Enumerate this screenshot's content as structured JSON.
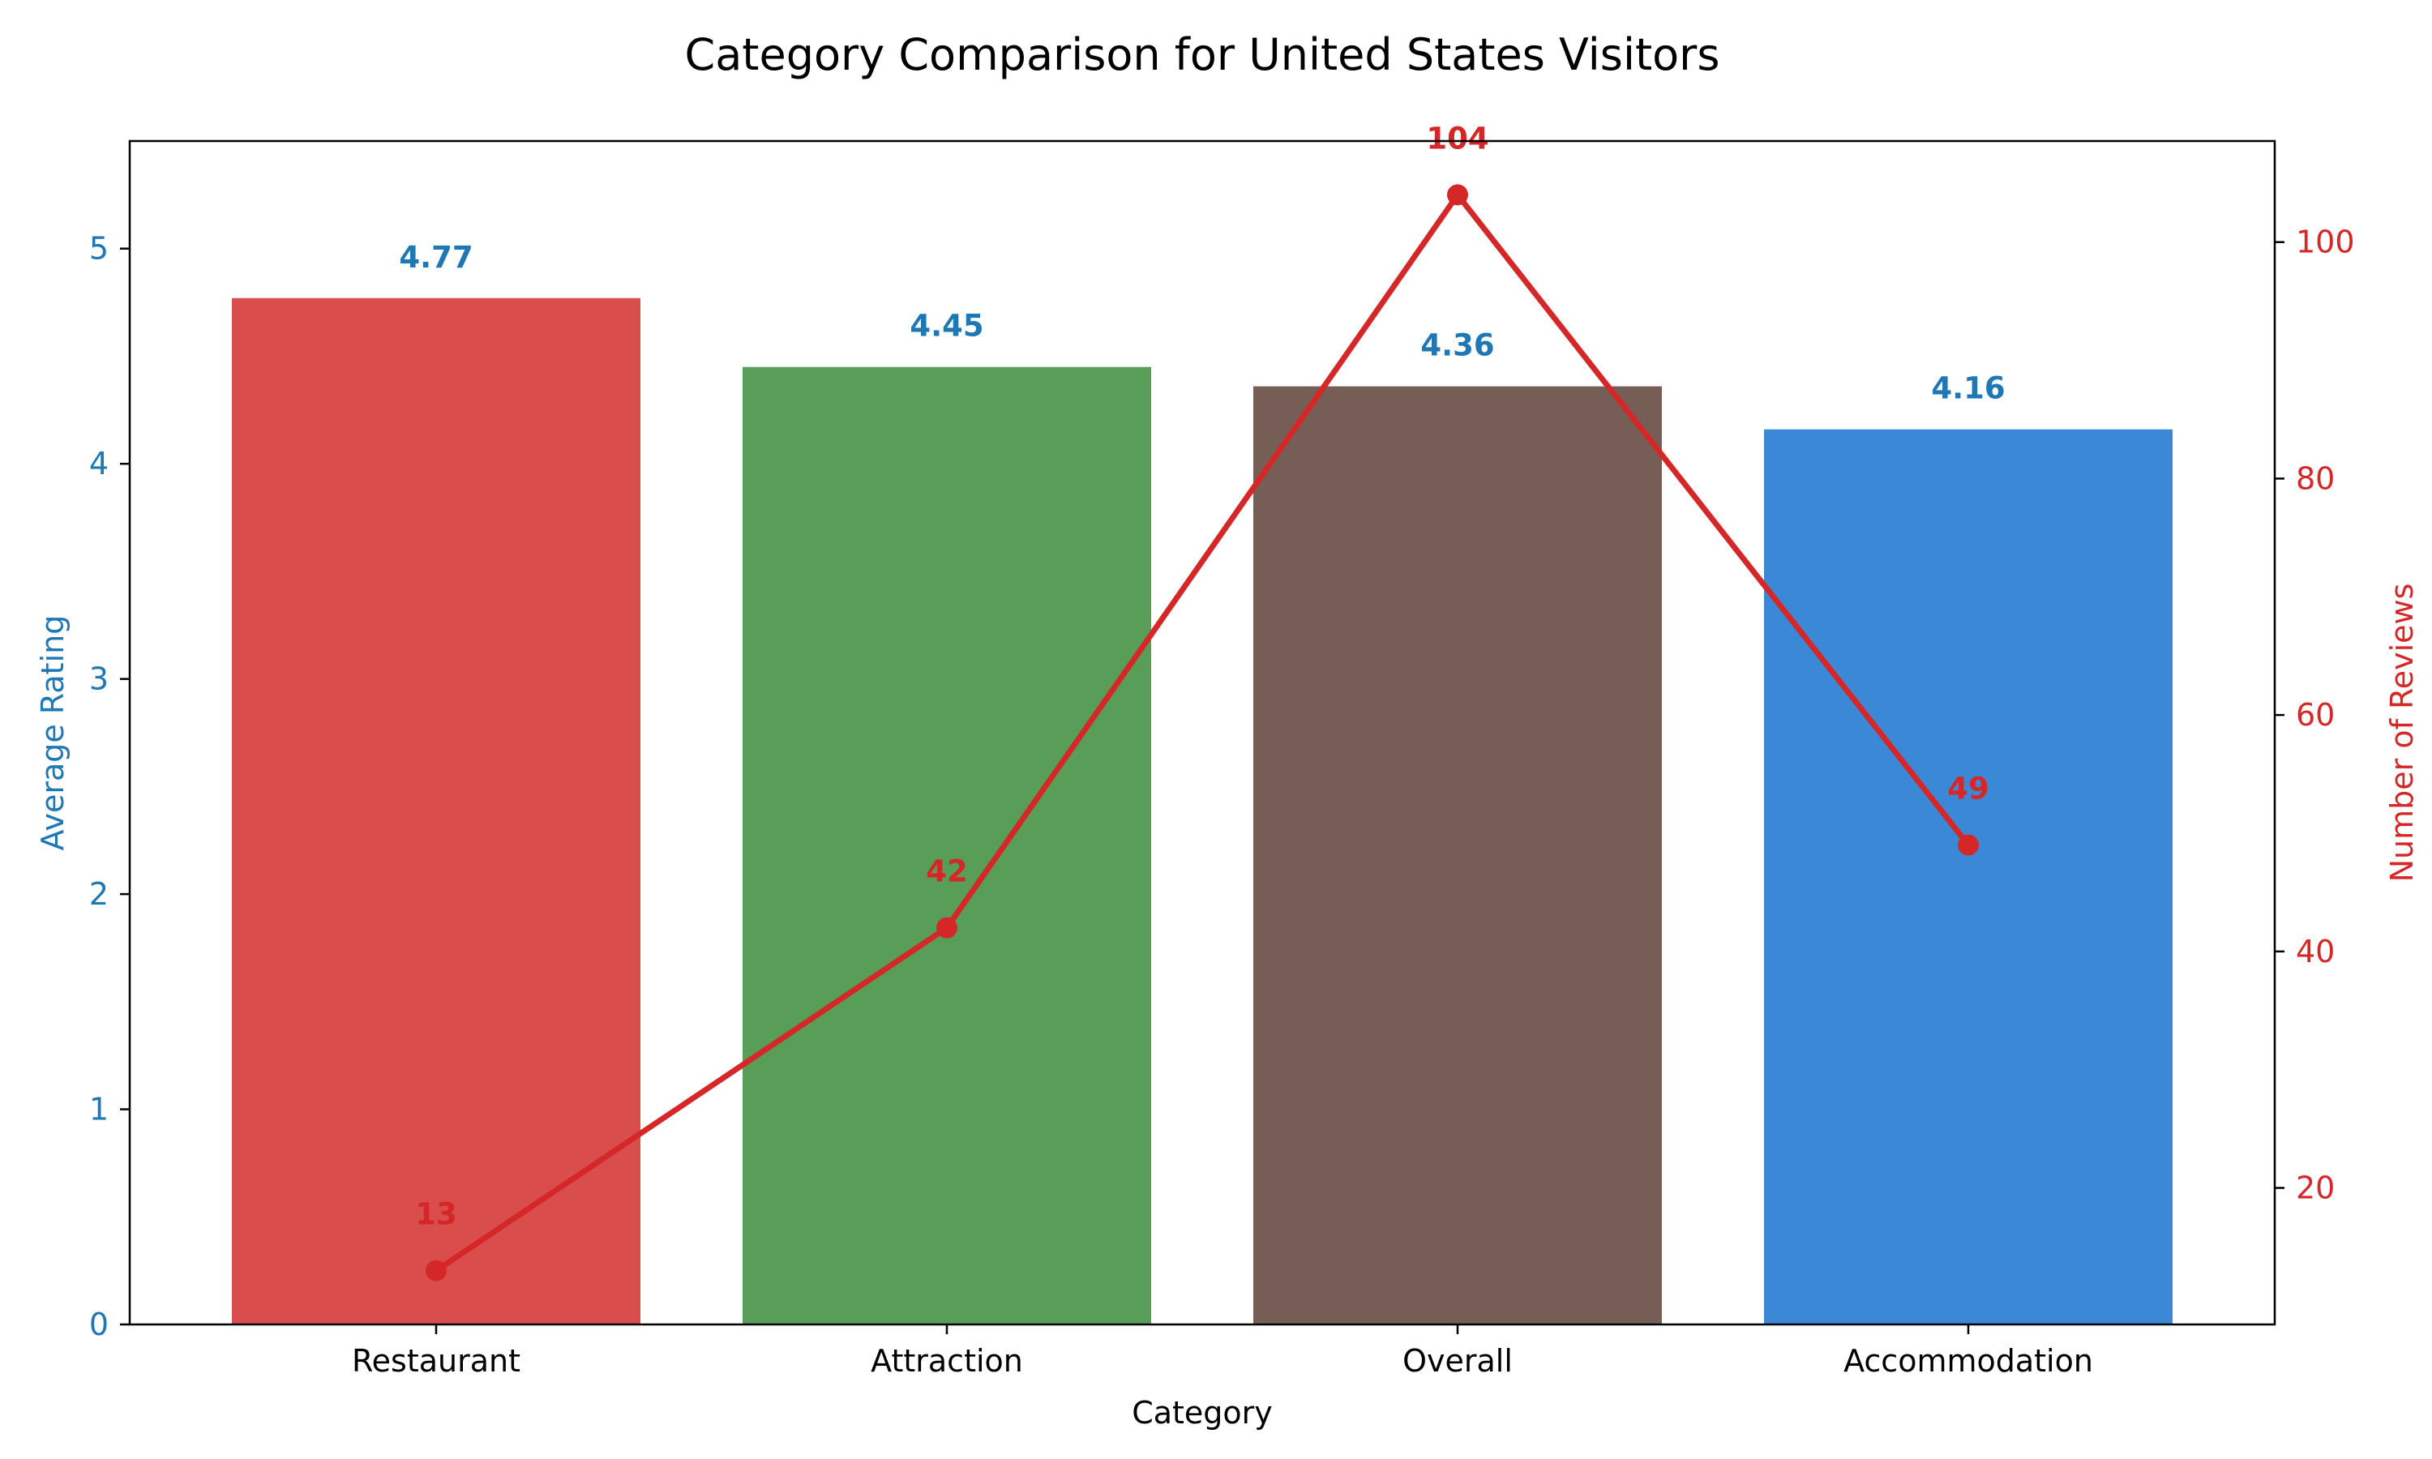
{
  "chart_data": {
    "type": "bar",
    "title": "Category Comparison for United States Visitors",
    "xlabel": "Category",
    "categories": [
      "Restaurant",
      "Attraction",
      "Overall",
      "Accommodation"
    ],
    "series": [
      {
        "type": "bar",
        "axis": "left",
        "values": [
          4.77,
          4.45,
          4.36,
          4.16
        ],
        "value_labels": [
          "4.77",
          "4.45",
          "4.36",
          "4.16"
        ],
        "colors": [
          "#d94d4d",
          "#589e59",
          "#765d56",
          "#3b89d6"
        ]
      },
      {
        "type": "line",
        "axis": "right",
        "values": [
          13,
          42,
          104,
          49
        ],
        "value_labels": [
          "13",
          "42",
          "104",
          "49"
        ],
        "color": "#d62728"
      }
    ],
    "left_axis": {
      "label": "Average Rating",
      "ylim": [
        0,
        5.5
      ],
      "ticks": [
        0,
        1,
        2,
        3,
        4,
        5
      ],
      "tick_labels": [
        "0",
        "1",
        "2",
        "3",
        "4",
        "5"
      ],
      "color": "#1f77b4"
    },
    "right_axis": {
      "label": "Number of Reviews",
      "ylim": [
        8.45,
        108.55
      ],
      "ticks": [
        20,
        40,
        60,
        80,
        100
      ],
      "tick_labels": [
        "20",
        "40",
        "60",
        "80",
        "100"
      ],
      "color": "#d62728"
    },
    "grid": false,
    "legend": "none"
  }
}
